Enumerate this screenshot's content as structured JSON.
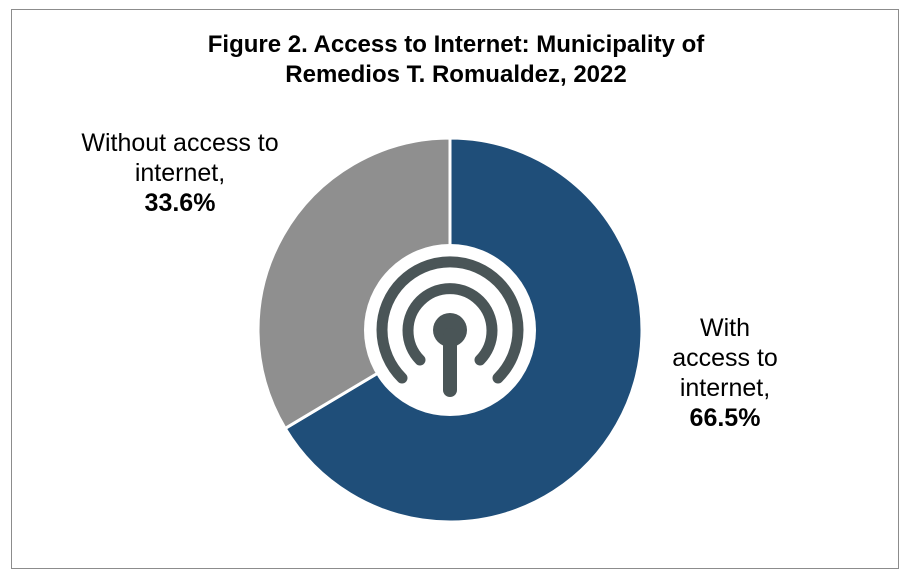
{
  "chart_data": {
    "type": "pie",
    "title_line1": "Figure 2. Access to Internet: Municipality of",
    "title_line2": "Remedios T. Romualdez, 2022",
    "slices": [
      {
        "label_line1": "With",
        "label_line2": "access to",
        "label_line3": "internet,",
        "value": 66.5,
        "value_text": "66.5%",
        "color": "#1f4e79"
      },
      {
        "label_line1": "Without access to",
        "label_line2": "internet,",
        "value": 33.6,
        "value_text": "33.6%",
        "color": "#8f8f8f"
      }
    ],
    "center_icon": "wifi-antenna-icon",
    "center_icon_color": "#4a5557"
  }
}
